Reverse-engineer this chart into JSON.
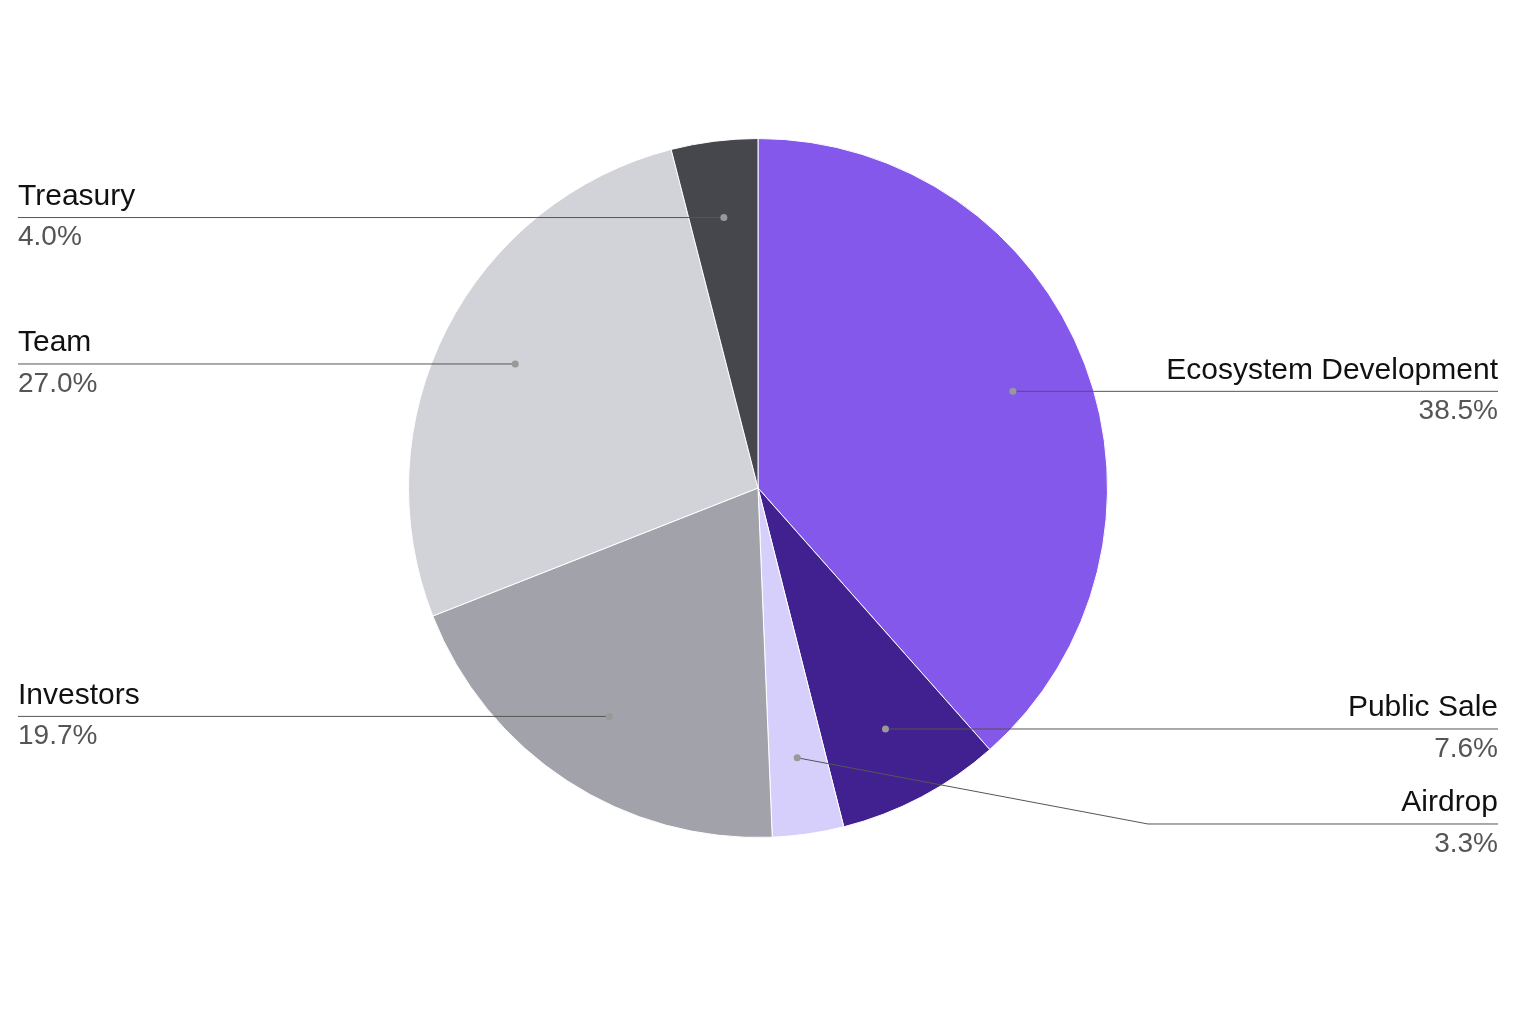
{
  "chart_data": {
    "type": "pie",
    "categories": [
      "Ecosystem Development",
      "Public Sale",
      "Airdrop",
      "Investors",
      "Team",
      "Treasury"
    ],
    "values": [
      38.5,
      7.6,
      3.3,
      19.7,
      27.0,
      4.0
    ],
    "colors": [
      "#8358ea",
      "#41208f",
      "#d6cffb",
      "#a1a2aa",
      "#d2d3d8",
      "#46474c"
    ],
    "value_labels": [
      "38.5%",
      "7.6%",
      "3.3%",
      "19.7%",
      "27.0%",
      "4.0%"
    ],
    "legend": false
  }
}
